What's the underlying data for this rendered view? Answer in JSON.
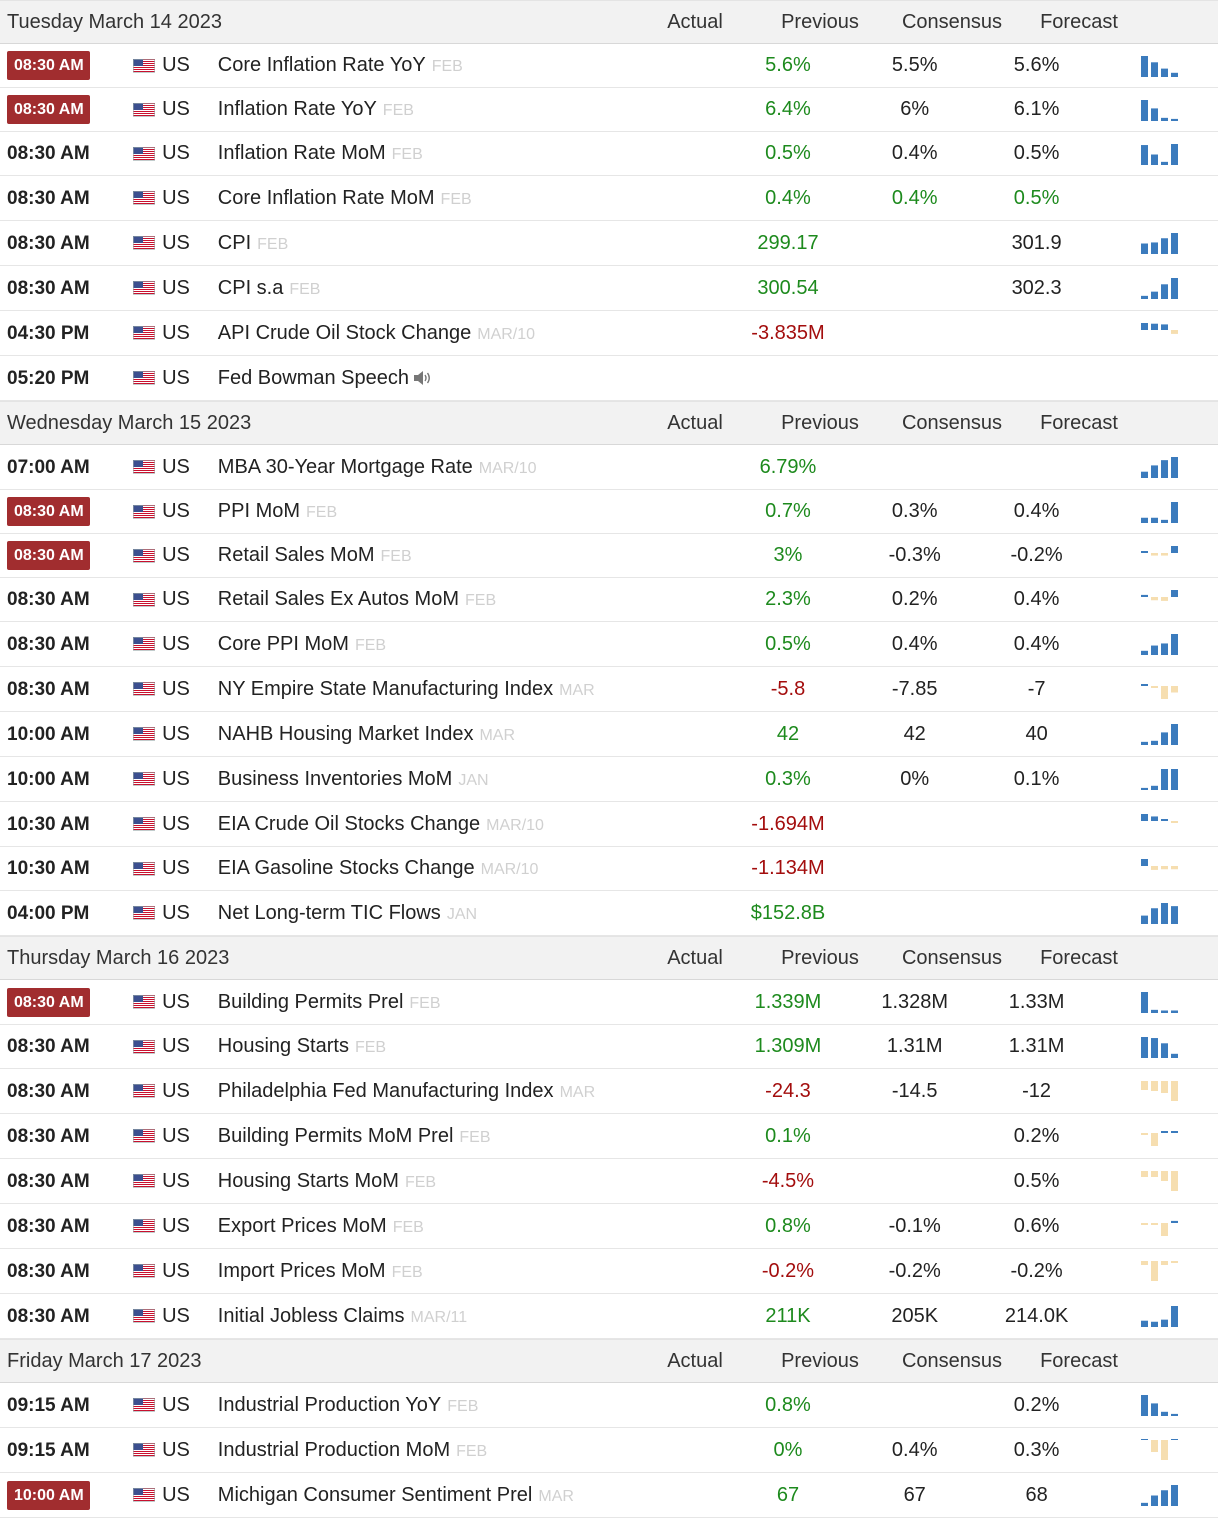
{
  "columns": {
    "actual": "Actual",
    "previous": "Previous",
    "consensus": "Consensus",
    "forecast": "Forecast"
  },
  "colors": {
    "highlight_time_bg": "#a12d2f",
    "positive": "#1d8a1d",
    "negative": "#a30d0d",
    "spark_blue": "#3b7bbd",
    "spark_tan": "#f6deb0"
  },
  "days": [
    {
      "date": "Tuesday March 14 2023",
      "events": [
        {
          "time": "08:30 AM",
          "highlight": true,
          "country": "US",
          "name": "Core Inflation Rate YoY",
          "ref": "FEB",
          "speech": false,
          "actual": "",
          "previous": "5.6%",
          "previous_color": "pos",
          "consensus": "5.5%",
          "consensus_color": "neutral",
          "forecast": "5.6%",
          "forecast_color": "neutral",
          "spark": [
            1.0,
            0.7,
            0.4,
            0.2
          ]
        },
        {
          "time": "08:30 AM",
          "highlight": true,
          "country": "US",
          "name": "Inflation Rate YoY",
          "ref": "FEB",
          "speech": false,
          "actual": "",
          "previous": "6.4%",
          "previous_color": "pos",
          "consensus": "6%",
          "consensus_color": "neutral",
          "forecast": "6.1%",
          "forecast_color": "neutral",
          "spark": [
            1.0,
            0.6,
            0.15,
            0.1
          ]
        },
        {
          "time": "08:30 AM",
          "highlight": false,
          "country": "US",
          "name": "Inflation Rate MoM",
          "ref": "FEB",
          "speech": false,
          "actual": "",
          "previous": "0.5%",
          "previous_color": "pos",
          "consensus": "0.4%",
          "consensus_color": "neutral",
          "forecast": "0.5%",
          "forecast_color": "neutral",
          "spark": [
            0.95,
            0.5,
            0.15,
            1.0
          ]
        },
        {
          "time": "08:30 AM",
          "highlight": false,
          "country": "US",
          "name": "Core Inflation Rate MoM",
          "ref": "FEB",
          "speech": false,
          "actual": "",
          "previous": "0.4%",
          "previous_color": "pos",
          "consensus": "0.4%",
          "consensus_color": "pos",
          "forecast": "0.5%",
          "forecast_color": "pos",
          "spark": []
        },
        {
          "time": "08:30 AM",
          "highlight": false,
          "country": "US",
          "name": "CPI",
          "ref": "FEB",
          "speech": false,
          "actual": "",
          "previous": "299.17",
          "previous_color": "pos",
          "consensus": "",
          "consensus_color": "neutral",
          "forecast": "301.9",
          "forecast_color": "neutral",
          "spark": [
            0.5,
            0.55,
            0.75,
            1.0
          ]
        },
        {
          "time": "08:30 AM",
          "highlight": false,
          "country": "US",
          "name": "CPI s.a",
          "ref": "FEB",
          "speech": false,
          "actual": "",
          "previous": "300.54",
          "previous_color": "pos",
          "consensus": "",
          "consensus_color": "neutral",
          "forecast": "302.3",
          "forecast_color": "neutral",
          "spark": [
            0.15,
            0.35,
            0.7,
            1.0
          ]
        },
        {
          "time": "04:30 PM",
          "highlight": false,
          "country": "US",
          "name": "API Crude Oil Stock Change",
          "ref": "MAR/10",
          "speech": false,
          "actual": "",
          "previous": "-3.835M",
          "previous_color": "neg",
          "consensus": "",
          "consensus_color": "neutral",
          "forecast": "",
          "forecast_color": "neutral",
          "spark": [
            1.0,
            0.9,
            0.8,
            -0.3
          ]
        },
        {
          "time": "05:20 PM",
          "highlight": false,
          "country": "US",
          "name": "Fed Bowman Speech",
          "ref": "",
          "speech": true,
          "actual": "",
          "previous": "",
          "previous_color": "neutral",
          "consensus": "",
          "consensus_color": "neutral",
          "forecast": "",
          "forecast_color": "neutral",
          "spark": []
        }
      ]
    },
    {
      "date": "Wednesday March 15 2023",
      "events": [
        {
          "time": "07:00 AM",
          "highlight": false,
          "country": "US",
          "name": "MBA 30-Year Mortgage Rate",
          "ref": "MAR/10",
          "speech": false,
          "actual": "",
          "previous": "6.79%",
          "previous_color": "pos",
          "consensus": "",
          "consensus_color": "neutral",
          "forecast": "",
          "forecast_color": "neutral",
          "spark": [
            0.3,
            0.6,
            0.85,
            1.0
          ]
        },
        {
          "time": "08:30 AM",
          "highlight": true,
          "country": "US",
          "name": "PPI MoM",
          "ref": "FEB",
          "speech": false,
          "actual": "",
          "previous": "0.7%",
          "previous_color": "pos",
          "consensus": "0.3%",
          "consensus_color": "neutral",
          "forecast": "0.4%",
          "forecast_color": "neutral",
          "spark": [
            0.25,
            0.25,
            0.15,
            1.0
          ]
        },
        {
          "time": "08:30 AM",
          "highlight": true,
          "country": "US",
          "name": "Retail Sales MoM",
          "ref": "FEB",
          "speech": false,
          "actual": "",
          "previous": "3%",
          "previous_color": "pos",
          "consensus": "-0.3%",
          "consensus_color": "neutral",
          "forecast": "-0.2%",
          "forecast_color": "neutral",
          "spark": [
            0.15,
            -0.2,
            -0.2,
            1.0
          ]
        },
        {
          "time": "08:30 AM",
          "highlight": false,
          "country": "US",
          "name": "Retail Sales Ex Autos MoM",
          "ref": "FEB",
          "speech": false,
          "actual": "",
          "previous": "2.3%",
          "previous_color": "pos",
          "consensus": "0.2%",
          "consensus_color": "neutral",
          "forecast": "0.4%",
          "forecast_color": "neutral",
          "spark": [
            0.3,
            -0.25,
            -0.3,
            1.0
          ]
        },
        {
          "time": "08:30 AM",
          "highlight": false,
          "country": "US",
          "name": "Core PPI MoM",
          "ref": "FEB",
          "speech": false,
          "actual": "",
          "previous": "0.5%",
          "previous_color": "pos",
          "consensus": "0.4%",
          "consensus_color": "neutral",
          "forecast": "0.4%",
          "forecast_color": "neutral",
          "spark": [
            0.2,
            0.45,
            0.55,
            1.0
          ]
        },
        {
          "time": "08:30 AM",
          "highlight": false,
          "country": "US",
          "name": "NY Empire State Manufacturing Index",
          "ref": "MAR",
          "speech": false,
          "actual": "",
          "previous": "-5.8",
          "previous_color": "neg",
          "consensus": "-7.85",
          "consensus_color": "neutral",
          "forecast": "-7",
          "forecast_color": "neutral",
          "spark": [
            0.1,
            -0.1,
            -1.0,
            -0.5
          ]
        },
        {
          "time": "10:00 AM",
          "highlight": false,
          "country": "US",
          "name": "NAHB Housing Market Index",
          "ref": "MAR",
          "speech": false,
          "actual": "",
          "previous": "42",
          "previous_color": "pos",
          "consensus": "42",
          "consensus_color": "neutral",
          "forecast": "40",
          "forecast_color": "neutral",
          "spark": [
            0.15,
            0.2,
            0.6,
            1.0
          ]
        },
        {
          "time": "10:00 AM",
          "highlight": false,
          "country": "US",
          "name": "Business Inventories MoM",
          "ref": "JAN",
          "speech": false,
          "actual": "",
          "previous": "0.3%",
          "previous_color": "pos",
          "consensus": "0%",
          "consensus_color": "neutral",
          "forecast": "0.1%",
          "forecast_color": "neutral",
          "spark": [
            0.1,
            0.2,
            1.0,
            1.0
          ]
        },
        {
          "time": "10:30 AM",
          "highlight": false,
          "country": "US",
          "name": "EIA Crude Oil Stocks Change",
          "ref": "MAR/10",
          "speech": false,
          "actual": "",
          "previous": "-1.694M",
          "previous_color": "neg",
          "consensus": "",
          "consensus_color": "neutral",
          "forecast": "",
          "forecast_color": "neutral",
          "spark": [
            1.0,
            0.65,
            0.1,
            -0.1
          ]
        },
        {
          "time": "10:30 AM",
          "highlight": false,
          "country": "US",
          "name": "EIA Gasoline Stocks Change",
          "ref": "MAR/10",
          "speech": false,
          "actual": "",
          "previous": "-1.134M",
          "previous_color": "neg",
          "consensus": "",
          "consensus_color": "neutral",
          "forecast": "",
          "forecast_color": "neutral",
          "spark": [
            1.0,
            -0.3,
            -0.25,
            -0.25
          ]
        },
        {
          "time": "04:00 PM",
          "highlight": false,
          "country": "US",
          "name": "Net Long-term TIC Flows",
          "ref": "JAN",
          "speech": false,
          "actual": "",
          "previous": "$152.8B",
          "previous_color": "pos",
          "consensus": "",
          "consensus_color": "neutral",
          "forecast": "",
          "forecast_color": "neutral",
          "spark": [
            0.4,
            0.75,
            1.0,
            0.85
          ]
        }
      ]
    },
    {
      "date": "Thursday March 16 2023",
      "events": [
        {
          "time": "08:30 AM",
          "highlight": true,
          "country": "US",
          "name": "Building Permits Prel",
          "ref": "FEB",
          "speech": false,
          "actual": "",
          "previous": "1.339M",
          "previous_color": "pos",
          "consensus": "1.328M",
          "consensus_color": "neutral",
          "forecast": "1.33M",
          "forecast_color": "neutral",
          "spark": [
            1.0,
            0.15,
            0.12,
            0.12
          ]
        },
        {
          "time": "08:30 AM",
          "highlight": false,
          "country": "US",
          "name": "Housing Starts",
          "ref": "FEB",
          "speech": false,
          "actual": "",
          "previous": "1.309M",
          "previous_color": "pos",
          "consensus": "1.31M",
          "consensus_color": "neutral",
          "forecast": "1.31M",
          "forecast_color": "neutral",
          "spark": [
            1.0,
            0.95,
            0.7,
            0.2
          ]
        },
        {
          "time": "08:30 AM",
          "highlight": false,
          "country": "US",
          "name": "Philadelphia Fed Manufacturing Index",
          "ref": "MAR",
          "speech": false,
          "actual": "",
          "previous": "-24.3",
          "previous_color": "neg",
          "consensus": "-14.5",
          "consensus_color": "neutral",
          "forecast": "-12",
          "forecast_color": "neutral",
          "spark": [
            -0.45,
            -0.5,
            -0.6,
            -1.0
          ]
        },
        {
          "time": "08:30 AM",
          "highlight": false,
          "country": "US",
          "name": "Building Permits MoM Prel",
          "ref": "FEB",
          "speech": false,
          "actual": "",
          "previous": "0.1%",
          "previous_color": "pos",
          "consensus": "",
          "consensus_color": "neutral",
          "forecast": "0.2%",
          "forecast_color": "neutral",
          "spark": [
            -0.15,
            -1.0,
            0.05,
            0.15
          ]
        },
        {
          "time": "08:30 AM",
          "highlight": false,
          "country": "US",
          "name": "Housing Starts MoM",
          "ref": "FEB",
          "speech": false,
          "actual": "",
          "previous": "-4.5%",
          "previous_color": "neg",
          "consensus": "",
          "consensus_color": "neutral",
          "forecast": "0.5%",
          "forecast_color": "neutral",
          "spark": [
            -0.3,
            -0.3,
            -0.5,
            -1.0
          ]
        },
        {
          "time": "08:30 AM",
          "highlight": false,
          "country": "US",
          "name": "Export Prices MoM",
          "ref": "FEB",
          "speech": false,
          "actual": "",
          "previous": "0.8%",
          "previous_color": "pos",
          "consensus": "-0.1%",
          "consensus_color": "neutral",
          "forecast": "0.6%",
          "forecast_color": "neutral",
          "spark": [
            -0.05,
            -0.1,
            -1.0,
            0.3
          ]
        },
        {
          "time": "08:30 AM",
          "highlight": false,
          "country": "US",
          "name": "Import Prices MoM",
          "ref": "FEB",
          "speech": false,
          "actual": "",
          "previous": "-0.2%",
          "previous_color": "neg",
          "consensus": "-0.2%",
          "consensus_color": "neutral",
          "forecast": "-0.2%",
          "forecast_color": "neutral",
          "spark": [
            -0.2,
            -1.0,
            -0.2,
            -0.1
          ]
        },
        {
          "time": "08:30 AM",
          "highlight": false,
          "country": "US",
          "name": "Initial Jobless Claims",
          "ref": "MAR/11",
          "speech": false,
          "actual": "",
          "previous": "211K",
          "previous_color": "pos",
          "consensus": "205K",
          "consensus_color": "neutral",
          "forecast": "214.0K",
          "forecast_color": "neutral",
          "spark": [
            0.3,
            0.25,
            0.35,
            1.0
          ]
        }
      ]
    },
    {
      "date": "Friday March 17 2023",
      "events": [
        {
          "time": "09:15 AM",
          "highlight": false,
          "country": "US",
          "name": "Industrial Production YoY",
          "ref": "FEB",
          "speech": false,
          "actual": "",
          "previous": "0.8%",
          "previous_color": "pos",
          "consensus": "",
          "consensus_color": "neutral",
          "forecast": "0.2%",
          "forecast_color": "neutral",
          "spark": [
            1.0,
            0.6,
            0.2,
            0.1
          ]
        },
        {
          "time": "09:15 AM",
          "highlight": false,
          "country": "US",
          "name": "Industrial Production MoM",
          "ref": "FEB",
          "speech": false,
          "actual": "",
          "previous": "0%",
          "previous_color": "pos",
          "consensus": "0.4%",
          "consensus_color": "neutral",
          "forecast": "0.3%",
          "forecast_color": "neutral",
          "spark": [
            0,
            -0.6,
            -1.0,
            0
          ]
        },
        {
          "time": "10:00 AM",
          "highlight": true,
          "country": "US",
          "name": "Michigan Consumer Sentiment Prel",
          "ref": "MAR",
          "speech": false,
          "actual": "",
          "previous": "67",
          "previous_color": "pos",
          "consensus": "67",
          "consensus_color": "neutral",
          "forecast": "68",
          "forecast_color": "neutral",
          "spark": [
            0.15,
            0.5,
            0.75,
            1.0
          ]
        }
      ]
    }
  ]
}
